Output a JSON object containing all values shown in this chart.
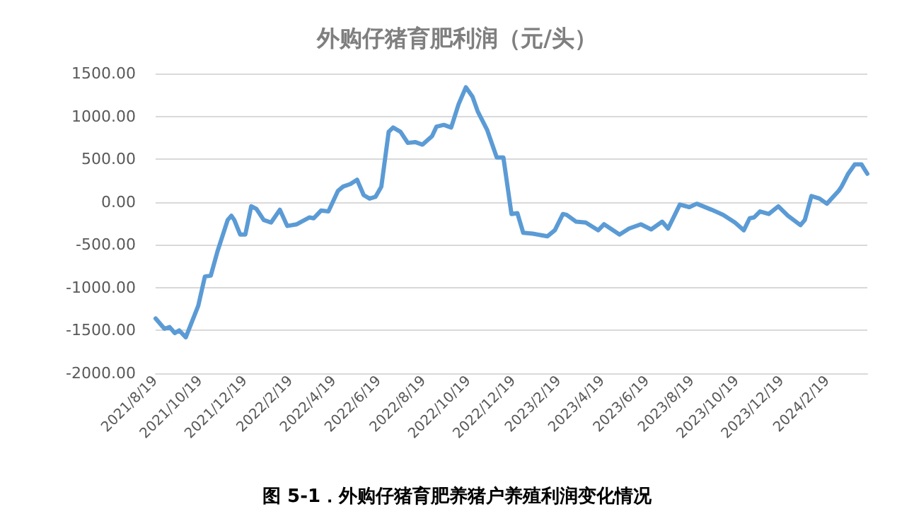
{
  "chart_data": {
    "type": "line",
    "title": "外购仔猪育肥利润（元/头）",
    "annotations": [
      "图 5-1．外购仔猪育肥养猪户养殖利润变化情况"
    ],
    "x": [
      "2021-08-19",
      "2021-08-31",
      "2021-09-07",
      "2021-09-14",
      "2021-09-20",
      "2021-09-29",
      "2021-10-16",
      "2021-10-25",
      "2021-11-02",
      "2021-11-11",
      "2021-11-25",
      "2021-11-30",
      "2021-12-04",
      "2021-12-12",
      "2021-12-19",
      "2021-12-27",
      "2022-01-03",
      "2022-01-13",
      "2022-01-23",
      "2022-02-04",
      "2022-02-14",
      "2022-02-27",
      "2022-03-16",
      "2022-03-22",
      "2022-04-01",
      "2022-04-11",
      "2022-04-24",
      "2022-05-01",
      "2022-05-11",
      "2022-05-20",
      "2022-05-29",
      "2022-06-06",
      "2022-06-14",
      "2022-06-22",
      "2022-07-02",
      "2022-07-08",
      "2022-07-18",
      "2022-07-28",
      "2022-08-07",
      "2022-08-17",
      "2022-08-30",
      "2022-09-05",
      "2022-09-15",
      "2022-09-25",
      "2022-10-05",
      "2022-10-15",
      "2022-10-24",
      "2022-10-31",
      "2022-11-13",
      "2022-11-26",
      "2022-12-05",
      "2022-12-16",
      "2022-12-24",
      "2023-01-01",
      "2023-01-14",
      "2023-02-03",
      "2023-02-13",
      "2023-02-24",
      "2023-03-01",
      "2023-03-14",
      "2023-03-27",
      "2023-04-13",
      "2023-04-21",
      "2023-05-12",
      "2023-05-25",
      "2023-06-10",
      "2023-06-24",
      "2023-07-09",
      "2023-07-17",
      "2023-08-02",
      "2023-08-15",
      "2023-08-25",
      "2023-09-14",
      "2023-09-30",
      "2023-10-16",
      "2023-10-28",
      "2023-11-05",
      "2023-11-11",
      "2023-11-19",
      "2023-12-01",
      "2023-12-14",
      "2023-12-27",
      "2024-01-13",
      "2024-01-19",
      "2024-01-28",
      "2024-02-08",
      "2024-02-18",
      "2024-03-05",
      "2024-03-09",
      "2024-03-18",
      "2024-03-27",
      "2024-04-05",
      "2024-04-13"
    ],
    "series": [
      {
        "color": "#5b9bd5",
        "values": [
          -1360,
          -1480,
          -1460,
          -1530,
          -1500,
          -1580,
          -1210,
          -870,
          -860,
          -580,
          -210,
          -160,
          -210,
          -380,
          -380,
          -50,
          -80,
          -210,
          -240,
          -90,
          -280,
          -260,
          -180,
          -190,
          -100,
          -110,
          130,
          180,
          210,
          260,
          80,
          40,
          60,
          180,
          820,
          870,
          820,
          690,
          700,
          670,
          770,
          880,
          900,
          870,
          1140,
          1340,
          1230,
          1060,
          840,
          520,
          520,
          -140,
          -130,
          -360,
          -370,
          -400,
          -330,
          -140,
          -150,
          -230,
          -240,
          -330,
          -260,
          -380,
          -310,
          -260,
          -320,
          -230,
          -310,
          -30,
          -60,
          -20,
          -90,
          -150,
          -240,
          -330,
          -190,
          -180,
          -110,
          -140,
          -50,
          -160,
          -270,
          -210,
          70,
          40,
          -20,
          130,
          180,
          330,
          440,
          440,
          330
        ]
      }
    ],
    "xlim": [
      "2021-08-19",
      "2024-04-13"
    ],
    "xticks": [
      {
        "value": "2021-08-19",
        "label": "2021/8/19"
      },
      {
        "value": "2021-10-19",
        "label": "2021/10/19"
      },
      {
        "value": "2021-12-19",
        "label": "2021/12/19"
      },
      {
        "value": "2022-02-19",
        "label": "2022/2/19"
      },
      {
        "value": "2022-04-19",
        "label": "2022/4/19"
      },
      {
        "value": "2022-06-19",
        "label": "2022/6/19"
      },
      {
        "value": "2022-08-19",
        "label": "2022/8/19"
      },
      {
        "value": "2022-10-19",
        "label": "2022/10/19"
      },
      {
        "value": "2022-12-19",
        "label": "2022/12/19"
      },
      {
        "value": "2023-02-19",
        "label": "2023/2/19"
      },
      {
        "value": "2023-04-19",
        "label": "2023/4/19"
      },
      {
        "value": "2023-06-19",
        "label": "2023/6/19"
      },
      {
        "value": "2023-08-19",
        "label": "2023/8/19"
      },
      {
        "value": "2023-10-19",
        "label": "2023/10/19"
      },
      {
        "value": "2023-12-19",
        "label": "2023/12/19"
      },
      {
        "value": "2024-02-19",
        "label": "2024/2/19"
      }
    ],
    "ylim": [
      -2000,
      1500
    ],
    "yticks": [
      {
        "value": -2000,
        "label": "-2000.00"
      },
      {
        "value": -1500,
        "label": "-1500.00"
      },
      {
        "value": -1000,
        "label": "-1000.00"
      },
      {
        "value": -500,
        "label": "-500.00"
      },
      {
        "value": 0,
        "label": "0.00"
      },
      {
        "value": 500,
        "label": "500.00"
      },
      {
        "value": 1000,
        "label": "1000.00"
      },
      {
        "value": 1500,
        "label": "1500.00"
      }
    ],
    "grid": "y",
    "marker": "none",
    "line_style": "solid"
  }
}
